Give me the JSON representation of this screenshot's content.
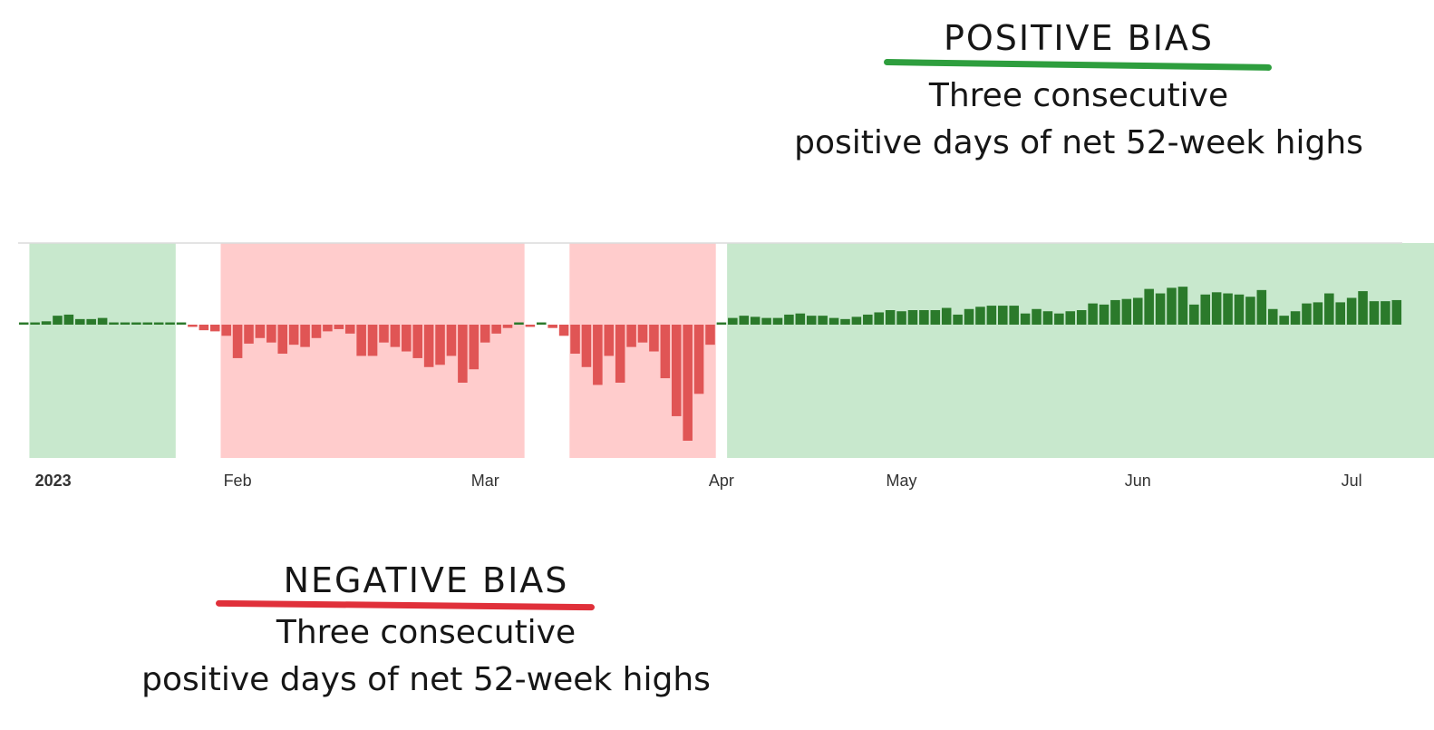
{
  "annotations": {
    "positive": {
      "heading": "POSITIVE BIAS",
      "line1": "Three consecutive",
      "line2": "positive days of net 52-week highs",
      "underline_color": "#2e9e3e"
    },
    "negative": {
      "heading": "NEGATIVE BIAS",
      "line1": "Three consecutive",
      "line2": "positive days of net 52-week highs",
      "underline_color": "#e0303a"
    }
  },
  "chart_data": {
    "type": "bar",
    "title": "",
    "xlabel": "",
    "ylabel": "",
    "x_tick_labels": [
      "2023",
      "Feb",
      "Mar",
      "Apr",
      "May",
      "Jun",
      "Jul"
    ],
    "colors": {
      "positive_bar": "#2b7a2b",
      "negative_bar": "#e05555",
      "positive_region": "#c8e8cd",
      "negative_region": "#ffcccc"
    },
    "regions": [
      {
        "bias": "positive",
        "start_index": 1,
        "end_index": 13
      },
      {
        "bias": "negative",
        "start_index": 18,
        "end_index": 44
      },
      {
        "bias": "negative",
        "start_index": 49,
        "end_index": 61
      },
      {
        "bias": "positive",
        "start_index": 63,
        "end_index": 126
      }
    ],
    "values": [
      2,
      2,
      3,
      8,
      9,
      5,
      5,
      6,
      2,
      2,
      2,
      2,
      2,
      2,
      2,
      -2,
      -5,
      -6,
      -10,
      -30,
      -17,
      -12,
      -16,
      -26,
      -18,
      -20,
      -12,
      -6,
      -4,
      -8,
      -28,
      -28,
      -16,
      -20,
      -24,
      -30,
      -38,
      -36,
      -28,
      -52,
      -40,
      -16,
      -8,
      -3,
      2,
      -2,
      2,
      -3,
      -10,
      -26,
      -38,
      -54,
      -28,
      -52,
      -20,
      -16,
      -24,
      -48,
      -82,
      -104,
      -62,
      -18,
      2,
      6,
      8,
      7,
      6,
      6,
      9,
      10,
      8,
      8,
      6,
      5,
      7,
      9,
      11,
      13,
      12,
      13,
      13,
      13,
      15,
      9,
      14,
      16,
      17,
      17,
      17,
      10,
      14,
      12,
      10,
      12,
      13,
      19,
      18,
      22,
      23,
      24,
      32,
      28,
      33,
      34,
      18,
      27,
      29,
      28,
      27,
      25,
      31,
      14,
      8,
      12,
      19,
      20,
      28,
      20,
      24,
      30,
      21,
      21,
      22
    ],
    "ylim": [
      -105,
      35
    ]
  }
}
